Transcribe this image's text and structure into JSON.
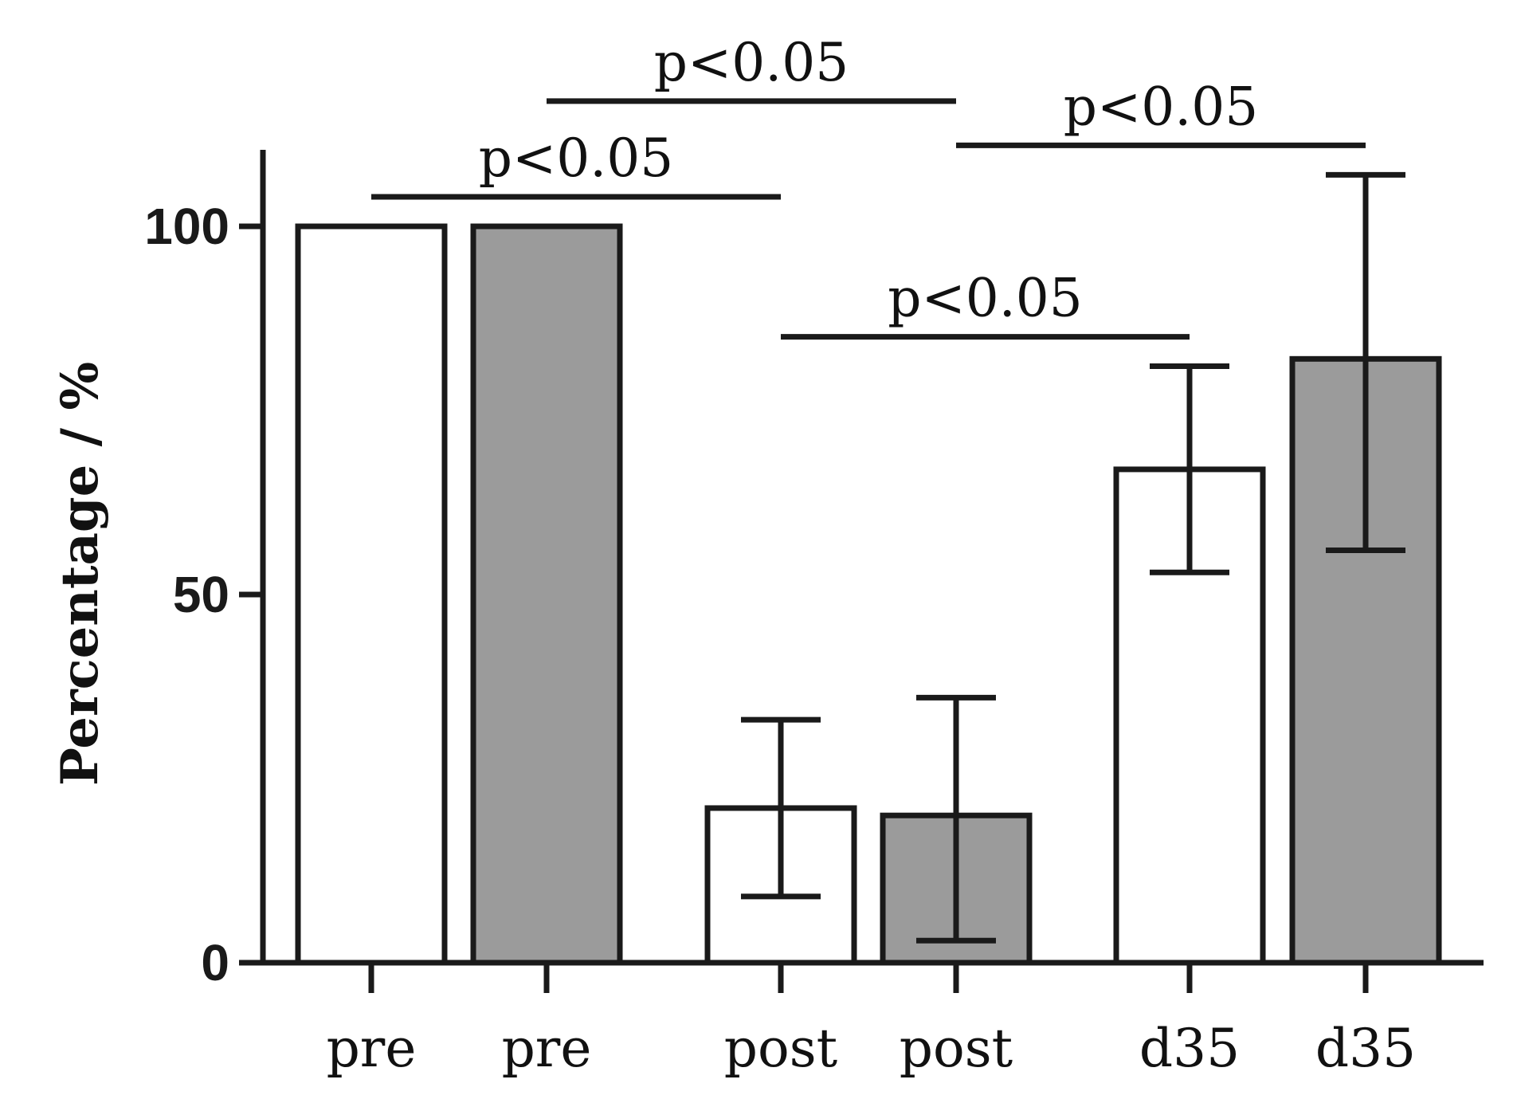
{
  "chart_data": {
    "type": "bar",
    "categories": [
      "pre",
      "pre",
      "post",
      "post",
      "d35",
      "d35"
    ],
    "values": [
      100,
      100,
      21,
      20,
      67,
      82
    ],
    "error_bars": [
      {
        "low": null,
        "high": null
      },
      {
        "low": null,
        "high": null
      },
      {
        "low": 9,
        "high": 33
      },
      {
        "low": 3,
        "high": 36
      },
      {
        "low": 53,
        "high": 81
      },
      {
        "low": 56,
        "high": 107
      }
    ],
    "bar_fills": [
      "#ffffff",
      "#9b9b9b",
      "#ffffff",
      "#9b9b9b",
      "#ffffff",
      "#9b9b9b"
    ],
    "ylabel": "Percentage / %",
    "ylim": [
      0,
      110
    ],
    "yticks": [
      "0",
      "50",
      "100"
    ],
    "ytick_values": [
      0,
      50,
      100
    ],
    "grid": false,
    "significance": [
      {
        "label": "p<0.05",
        "from": 0,
        "to": 2,
        "y": 104
      },
      {
        "label": "p<0.05",
        "from": 1,
        "to": 3,
        "y": 117
      },
      {
        "label": "p<0.05",
        "from": 3,
        "to": 5,
        "y": 111
      },
      {
        "label": "p<0.05",
        "from": 2,
        "to": 4,
        "y": 85
      }
    ],
    "colors": {
      "stroke": "#1a1a1a",
      "gray_fill": "#9b9b9b",
      "white_fill": "#ffffff"
    }
  }
}
